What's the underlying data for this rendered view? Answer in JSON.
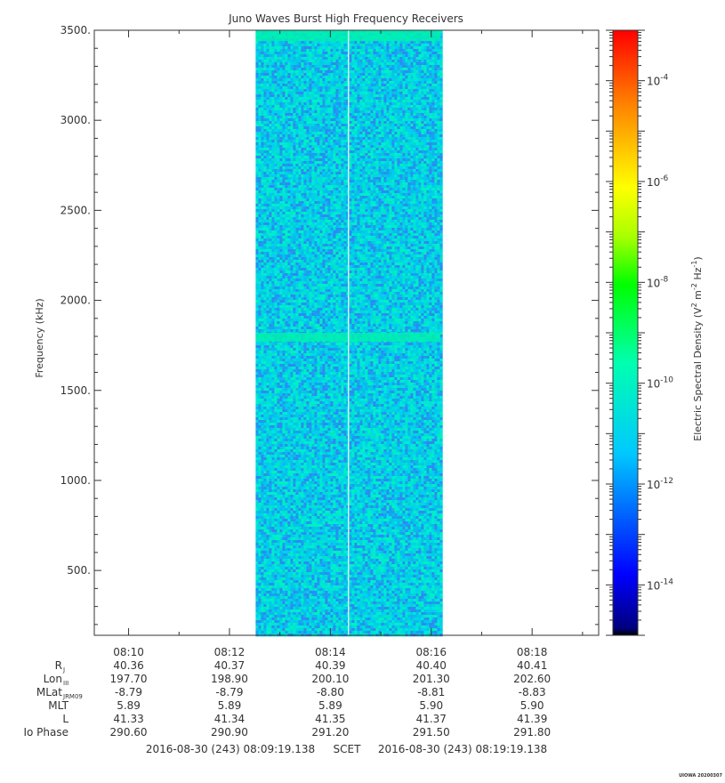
{
  "chart_data": {
    "type": "heatmap",
    "title": "Juno Waves Burst High Frequency Receivers",
    "ylabel": "Frequency (kHz)",
    "ylim": [
      140,
      3500
    ],
    "yticks": [
      500,
      1000,
      1500,
      2000,
      2500,
      3000,
      3500
    ],
    "ytick_labels": [
      "500.",
      "1000.",
      "1500.",
      "2000.",
      "2500.",
      "3000.",
      "3500."
    ],
    "xlim_minutes": [
      9.32,
      19.32
    ],
    "xticks_minutes": [
      10,
      12,
      14,
      16,
      18
    ],
    "xtick_labels": [
      "08:10",
      "08:12",
      "08:14",
      "08:16",
      "08:18"
    ],
    "data_interval_minutes": [
      12.52,
      16.18
    ],
    "gap_line_minutes": 14.36,
    "bright_bands_khz": [
      [
        3440,
        3500
      ],
      [
        1770,
        1820
      ]
    ],
    "colorbar": {
      "label_prefix": "Electric Spectral Density (",
      "scale": "log",
      "range_exp": [
        -15,
        -3
      ],
      "tick_exponents": [
        -14,
        -12,
        -10,
        -8,
        -6,
        -4
      ],
      "tick_base": "10"
    },
    "ephemeris": {
      "rows": [
        {
          "label": "R",
          "sub": "J",
          "values": [
            "40.36",
            "40.37",
            "40.39",
            "40.40",
            "40.41"
          ]
        },
        {
          "label": "Lon",
          "sub": "III",
          "values": [
            "197.70",
            "198.90",
            "200.10",
            "201.30",
            "202.60"
          ]
        },
        {
          "label": "MLat",
          "sub": "JRM09",
          "values": [
            "-8.79",
            "-8.79",
            "-8.80",
            "-8.81",
            "-8.83"
          ]
        },
        {
          "label": "MLT",
          "sub": "",
          "values": [
            "5.89",
            "5.89",
            "5.89",
            "5.90",
            "5.90"
          ]
        },
        {
          "label": "L",
          "sub": "",
          "values": [
            "41.33",
            "41.34",
            "41.35",
            "41.37",
            "41.39"
          ]
        },
        {
          "label": "Io Phase",
          "sub": "",
          "values": [
            "290.60",
            "290.90",
            "291.20",
            "291.50",
            "291.80"
          ]
        }
      ]
    },
    "time_range": {
      "start": "2016-08-30 (243) 08:09:19.138",
      "frame": "SCET",
      "end": "2016-08-30 (243) 08:19:19.138"
    },
    "credit": "UIOWA 20200307"
  }
}
